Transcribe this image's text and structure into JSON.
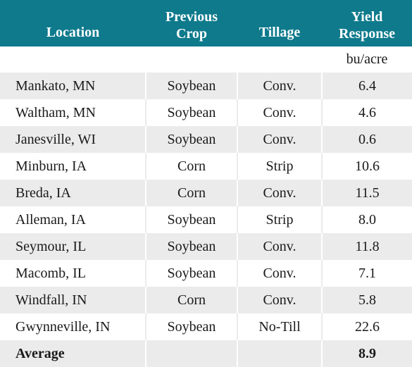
{
  "table": {
    "headers": [
      [
        "Location"
      ],
      [
        "Previous",
        "Crop"
      ],
      [
        "Tillage"
      ],
      [
        "Yield",
        "Response"
      ]
    ],
    "unit": "bu/acre",
    "rows": [
      [
        "Mankato, MN",
        "Soybean",
        "Conv.",
        "6.4"
      ],
      [
        "Waltham, MN",
        "Soybean",
        "Conv.",
        "4.6"
      ],
      [
        "Janesville, WI",
        "Soybean",
        "Conv.",
        "0.6"
      ],
      [
        "Minburn, IA",
        "Corn",
        "Strip",
        "10.6"
      ],
      [
        "Breda, IA",
        "Corn",
        "Conv.",
        "11.5"
      ],
      [
        "Alleman, IA",
        "Soybean",
        "Strip",
        "8.0"
      ],
      [
        "Seymour, IL",
        "Soybean",
        "Conv.",
        "11.8"
      ],
      [
        "Macomb, IL",
        "Soybean",
        "Conv.",
        "7.1"
      ],
      [
        "Windfall, IN",
        "Corn",
        "Conv.",
        "5.8"
      ],
      [
        "Gwynneville, IN",
        "Soybean",
        "No-Till",
        "22.6"
      ]
    ],
    "average": [
      "Average",
      "",
      "",
      "8.9"
    ]
  },
  "colors": {
    "header_bg": "#0e7a8c",
    "header_text": "#ffffff",
    "row_shade": "#ebebeb"
  }
}
